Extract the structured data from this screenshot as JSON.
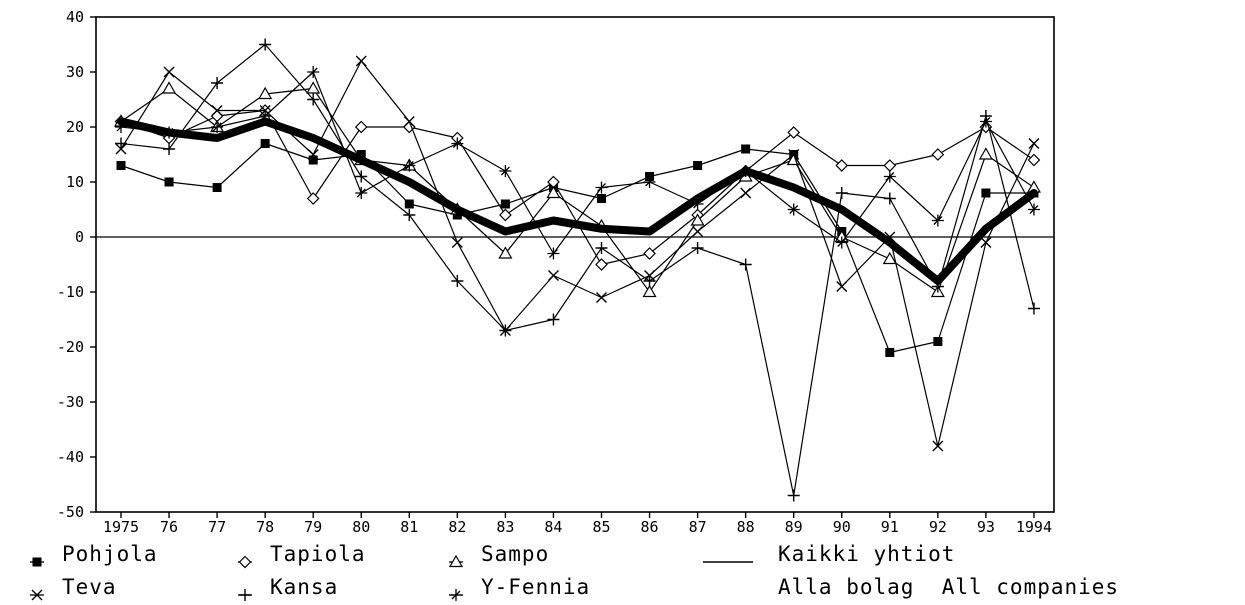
{
  "chart_data": {
    "type": "line",
    "ylim": [
      -50,
      40
    ],
    "yticks": [
      40,
      30,
      20,
      10,
      0,
      -10,
      -20,
      -30,
      -40,
      -50
    ],
    "categories": [
      "1975",
      "76",
      "77",
      "78",
      "79",
      "80",
      "81",
      "82",
      "83",
      "84",
      "85",
      "86",
      "87",
      "88",
      "89",
      "90",
      "91",
      "92",
      "93",
      "1994"
    ],
    "series": [
      {
        "name": "Pohjola",
        "marker": "square",
        "values": [
          13,
          10,
          9,
          17,
          14,
          15,
          6,
          4,
          6,
          9,
          7,
          11,
          13,
          16,
          15,
          1,
          -21,
          -19,
          8,
          8
        ]
      },
      {
        "name": "Tapiola",
        "marker": "diamond",
        "values": [
          21,
          18,
          22,
          23,
          7,
          20,
          20,
          18,
          4,
          10,
          -5,
          -3,
          4,
          12,
          19,
          13,
          13,
          15,
          20,
          14
        ]
      },
      {
        "name": "Sampo",
        "marker": "triangle",
        "values": [
          21,
          27,
          20,
          26,
          27,
          14,
          13,
          5,
          -3,
          8,
          2,
          -10,
          3,
          11,
          14,
          0,
          -4,
          -10,
          15,
          9
        ]
      },
      {
        "name": "Teva",
        "marker": "x",
        "values": [
          16,
          30,
          23,
          23,
          15,
          32,
          21,
          -1,
          -17,
          -7,
          -11,
          -7,
          1,
          8,
          15,
          -9,
          0,
          -38,
          -1,
          17
        ]
      },
      {
        "name": "Kansa",
        "marker": "plus",
        "values": [
          17,
          16,
          28,
          35,
          25,
          11,
          4,
          -8,
          -17,
          -15,
          -2,
          -8,
          -2,
          -5,
          -47,
          8,
          7,
          -9,
          22,
          -13
        ]
      },
      {
        "name": "Y-Fennia",
        "marker": "asterisk",
        "values": [
          20,
          19,
          20,
          22,
          30,
          8,
          13,
          17,
          12,
          -3,
          9,
          10,
          6,
          12,
          5,
          -1,
          11,
          3,
          21,
          5
        ]
      },
      {
        "name": "Kaikki yhtiot",
        "marker": "none",
        "bold": true,
        "values": [
          21,
          19,
          18,
          21,
          18,
          14,
          10,
          5,
          1,
          3,
          1.5,
          1,
          7,
          12,
          9,
          5,
          -1,
          -8,
          1.5,
          8
        ]
      }
    ],
    "legend": {
      "placement": "bottom",
      "items": [
        {
          "label": "Pohjola",
          "marker": "square"
        },
        {
          "label": "Tapiola",
          "marker": "diamond"
        },
        {
          "label": "Sampo",
          "marker": "triangle"
        },
        {
          "label": "Kaikki yhtiot",
          "marker": "line"
        },
        {
          "label": "Teva",
          "marker": "x"
        },
        {
          "label": "Kansa",
          "marker": "plus"
        },
        {
          "label": "Y-Fennia",
          "marker": "asterisk"
        },
        {
          "label": "Alla bolag  All companies",
          "marker": "none"
        }
      ]
    },
    "grid": false,
    "zero_line": true
  }
}
